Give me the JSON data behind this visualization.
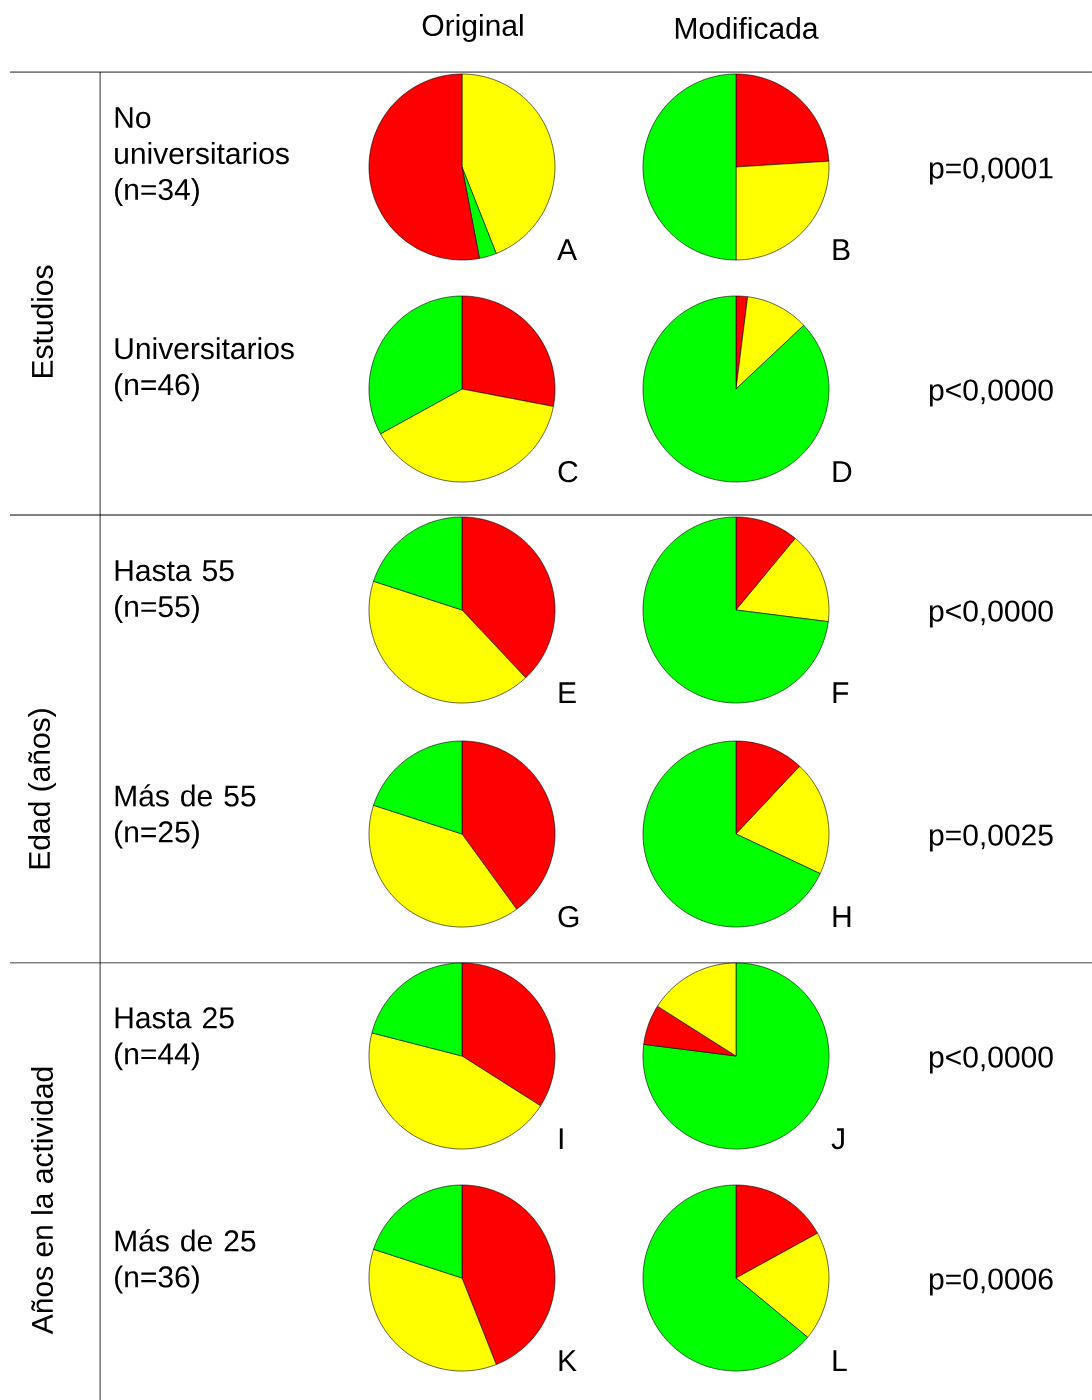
{
  "chart_data": [
    {
      "type": "other",
      "annotations": [
        "Original",
        "Modificada",
        "Estudios",
        "Edad (años)",
        "Años en la actividad",
        "No universitarios (n=34)",
        "Universitarios (n=46)",
        "Hasta 55 (n=55)",
        "Más de 55 (n=25)",
        "Hasta 25 (n=44)",
        "Más de 25 (n=36)",
        "p=0,0001",
        "p<0,0000",
        "p<0,0000",
        "p=0,0025",
        "p<0,0000",
        "p=0,0006"
      ]
    },
    {
      "type": "pie",
      "title": "A",
      "categories": [
        null,
        null,
        null
      ],
      "values": [
        44,
        3,
        53
      ],
      "colors": [
        "#ffff00",
        "#00ff00",
        "#ff0000"
      ]
    },
    {
      "type": "pie",
      "title": "B",
      "categories": [
        null,
        null,
        null
      ],
      "values": [
        24,
        26,
        50
      ],
      "colors": [
        "#ff0000",
        "#ffff00",
        "#00ff00"
      ]
    },
    {
      "type": "pie",
      "title": "C",
      "categories": [
        null,
        null,
        null
      ],
      "values": [
        28,
        39,
        33
      ],
      "colors": [
        "#ff0000",
        "#ffff00",
        "#00ff00"
      ]
    },
    {
      "type": "pie",
      "title": "D",
      "categories": [
        null,
        null,
        null
      ],
      "values": [
        2,
        11,
        87
      ],
      "colors": [
        "#ff0000",
        "#ffff00",
        "#00ff00"
      ]
    },
    {
      "type": "pie",
      "title": "E",
      "categories": [
        null,
        null,
        null
      ],
      "values": [
        38,
        42,
        20
      ],
      "colors": [
        "#ff0000",
        "#ffff00",
        "#00ff00"
      ]
    },
    {
      "type": "pie",
      "title": "F",
      "categories": [
        null,
        null,
        null
      ],
      "values": [
        11,
        16,
        73
      ],
      "colors": [
        "#ff0000",
        "#ffff00",
        "#00ff00"
      ]
    },
    {
      "type": "pie",
      "title": "G",
      "categories": [
        null,
        null,
        null
      ],
      "values": [
        40,
        40,
        20
      ],
      "colors": [
        "#ff0000",
        "#ffff00",
        "#00ff00"
      ]
    },
    {
      "type": "pie",
      "title": "H",
      "categories": [
        null,
        null,
        null
      ],
      "values": [
        12,
        20,
        68
      ],
      "colors": [
        "#ff0000",
        "#ffff00",
        "#00ff00"
      ]
    },
    {
      "type": "pie",
      "title": "I",
      "categories": [
        null,
        null,
        null
      ],
      "values": [
        34,
        45,
        21
      ],
      "colors": [
        "#ff0000",
        "#ffff00",
        "#00ff00"
      ]
    },
    {
      "type": "pie",
      "title": "J",
      "categories": [
        null,
        null,
        null
      ],
      "values": [
        77,
        7,
        16
      ],
      "colors": [
        "#00ff00",
        "#ff0000",
        "#ffff00"
      ]
    },
    {
      "type": "pie",
      "title": "K",
      "categories": [
        null,
        null,
        null
      ],
      "values": [
        44,
        36,
        20
      ],
      "colors": [
        "#ff0000",
        "#ffff00",
        "#00ff00"
      ]
    },
    {
      "type": "pie",
      "title": "L",
      "categories": [
        null,
        null,
        null
      ],
      "values": [
        17,
        19,
        64
      ],
      "colors": [
        "#ff0000",
        "#ffff00",
        "#00ff00"
      ]
    }
  ]
}
